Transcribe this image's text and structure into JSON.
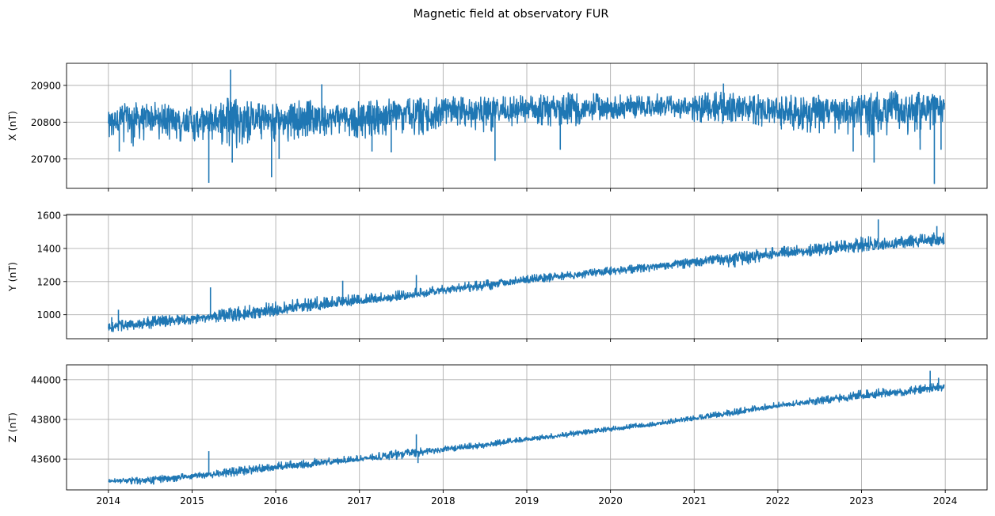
{
  "title": "Magnetic field at observatory FUR",
  "chart_data": [
    {
      "type": "line",
      "title": "",
      "xlabel": "",
      "ylabel": "X (nT)",
      "xlim": [
        2013.5,
        2024.5
      ],
      "ylim": [
        20620,
        20960
      ],
      "grid": true,
      "x_ticks": [
        "2014",
        "2015",
        "2016",
        "2017",
        "2018",
        "2019",
        "2020",
        "2021",
        "2022",
        "2023",
        "2024"
      ],
      "x_tick_labels_visible": false,
      "y_ticks": [
        20700,
        20800,
        20900
      ],
      "y_tick_labels": [
        "20700",
        "20800",
        "20900"
      ],
      "series": [
        {
          "color": "#1f77b4",
          "x": [
            2014.0,
            2014.25,
            2014.5,
            2014.75,
            2015.0,
            2015.25,
            2015.5,
            2015.75,
            2016.0,
            2016.25,
            2016.5,
            2016.75,
            2017.0,
            2017.25,
            2017.5,
            2017.75,
            2018.0,
            2018.25,
            2018.5,
            2018.75,
            2019.0,
            2019.25,
            2019.5,
            2019.75,
            2020.0,
            2020.25,
            2020.5,
            2020.75,
            2021.0,
            2021.25,
            2021.5,
            2021.75,
            2022.0,
            2022.25,
            2022.5,
            2022.75,
            2023.0,
            2023.25,
            2023.5,
            2023.75,
            2023.99
          ],
          "y": [
            20805,
            20808,
            20810,
            20806,
            20800,
            20804,
            20810,
            20808,
            20805,
            20810,
            20812,
            20814,
            20818,
            20818,
            20822,
            20822,
            20826,
            20828,
            20830,
            20830,
            20833,
            20834,
            20836,
            20838,
            20838,
            20840,
            20841,
            20842,
            20840,
            20840,
            20838,
            20834,
            20830,
            20828,
            20828,
            20826,
            20828,
            20830,
            20832,
            20834,
            20845
          ],
          "upper_envelope": [
            20840,
            20855,
            20855,
            20850,
            20845,
            20860,
            20870,
            20855,
            20850,
            20860,
            20860,
            20855,
            20860,
            20862,
            20865,
            20868,
            20870,
            20870,
            20872,
            20872,
            20875,
            20880,
            20885,
            20880,
            20875,
            20875,
            20878,
            20875,
            20875,
            20885,
            20880,
            20875,
            20875,
            20875,
            20875,
            20870,
            20875,
            20885,
            20885,
            20880,
            20870
          ],
          "lower_envelope": [
            20760,
            20725,
            20760,
            20745,
            20745,
            20745,
            20720,
            20745,
            20745,
            20745,
            20760,
            20760,
            20755,
            20760,
            20765,
            20760,
            20790,
            20790,
            20770,
            20785,
            20795,
            20790,
            20785,
            20800,
            20810,
            20810,
            20815,
            20815,
            20800,
            20795,
            20790,
            20790,
            20780,
            20775,
            20765,
            20760,
            20760,
            20760,
            20760,
            20750,
            20800
          ],
          "spikes": [
            {
              "x": 2014.13,
              "y": 20720
            },
            {
              "x": 2015.2,
              "y": 20635
            },
            {
              "x": 2015.46,
              "y": 20943
            },
            {
              "x": 2015.48,
              "y": 20690
            },
            {
              "x": 2015.95,
              "y": 20650
            },
            {
              "x": 2016.04,
              "y": 20700
            },
            {
              "x": 2016.55,
              "y": 20903
            },
            {
              "x": 2017.15,
              "y": 20720
            },
            {
              "x": 2017.38,
              "y": 20718
            },
            {
              "x": 2018.62,
              "y": 20695
            },
            {
              "x": 2019.4,
              "y": 20725
            },
            {
              "x": 2021.35,
              "y": 20905
            },
            {
              "x": 2022.9,
              "y": 20720
            },
            {
              "x": 2023.15,
              "y": 20690
            },
            {
              "x": 2023.7,
              "y": 20725
            },
            {
              "x": 2023.87,
              "y": 20632
            },
            {
              "x": 2023.95,
              "y": 20725
            }
          ]
        }
      ]
    },
    {
      "type": "line",
      "title": "",
      "xlabel": "",
      "ylabel": "Y (nT)",
      "xlim": [
        2013.5,
        2024.5
      ],
      "ylim": [
        855,
        1605
      ],
      "grid": true,
      "x_ticks": [
        "2014",
        "2015",
        "2016",
        "2017",
        "2018",
        "2019",
        "2020",
        "2021",
        "2022",
        "2023",
        "2024"
      ],
      "x_tick_labels_visible": false,
      "y_ticks": [
        1000,
        1200,
        1400,
        1600
      ],
      "y_tick_labels": [
        "1000",
        "1200",
        "1400",
        "1600"
      ],
      "series": [
        {
          "color": "#1f77b4",
          "x": [
            2014.0,
            2014.5,
            2015.0,
            2015.5,
            2016.0,
            2016.5,
            2017.0,
            2017.5,
            2018.0,
            2018.5,
            2019.0,
            2019.5,
            2020.0,
            2020.5,
            2021.0,
            2021.5,
            2022.0,
            2022.5,
            2023.0,
            2023.5,
            2023.99
          ],
          "y": [
            930,
            950,
            975,
            1000,
            1030,
            1060,
            1085,
            1110,
            1150,
            1175,
            1210,
            1235,
            1265,
            1290,
            1320,
            1340,
            1370,
            1390,
            1420,
            1435,
            1450
          ],
          "upper_envelope": [
            960,
            990,
            1010,
            1045,
            1080,
            1110,
            1125,
            1150,
            1180,
            1210,
            1240,
            1260,
            1290,
            1310,
            1345,
            1380,
            1410,
            1430,
            1470,
            1480,
            1500
          ],
          "lower_envelope": [
            895,
            915,
            945,
            960,
            995,
            1025,
            1060,
            1085,
            1125,
            1145,
            1185,
            1210,
            1240,
            1260,
            1285,
            1285,
            1345,
            1355,
            1380,
            1400,
            1420
          ],
          "spikes": [
            {
              "x": 2014.04,
              "y": 985
            },
            {
              "x": 2014.12,
              "y": 1030
            },
            {
              "x": 2015.22,
              "y": 1165
            },
            {
              "x": 2016.8,
              "y": 1205
            },
            {
              "x": 2017.68,
              "y": 1240
            },
            {
              "x": 2023.2,
              "y": 1575
            },
            {
              "x": 2023.9,
              "y": 1535
            }
          ]
        }
      ]
    },
    {
      "type": "line",
      "title": "",
      "xlabel": "",
      "ylabel": "Z (nT)",
      "xlim": [
        2013.5,
        2024.5
      ],
      "ylim": [
        43445,
        44075
      ],
      "grid": true,
      "x_ticks": [
        "2014",
        "2015",
        "2016",
        "2017",
        "2018",
        "2019",
        "2020",
        "2021",
        "2022",
        "2023",
        "2024"
      ],
      "x_tick_labels_visible": true,
      "y_ticks": [
        43600,
        43800,
        44000
      ],
      "y_tick_labels": [
        "43600",
        "43800",
        "44000"
      ],
      "series": [
        {
          "color": "#1f77b4",
          "x": [
            2014.0,
            2014.5,
            2015.0,
            2015.5,
            2016.0,
            2016.5,
            2017.0,
            2017.5,
            2018.0,
            2018.5,
            2019.0,
            2019.5,
            2020.0,
            2020.5,
            2021.0,
            2021.5,
            2022.0,
            2022.5,
            2023.0,
            2023.5,
            2023.99
          ],
          "y": [
            43490,
            43495,
            43515,
            43535,
            43560,
            43580,
            43600,
            43625,
            43650,
            43670,
            43700,
            43725,
            43750,
            43775,
            43805,
            43835,
            43870,
            43895,
            43920,
            43940,
            43965
          ],
          "upper_envelope": [
            43500,
            43515,
            43530,
            43560,
            43585,
            43605,
            43620,
            43650,
            43665,
            43690,
            43715,
            43740,
            43765,
            43790,
            43820,
            43855,
            43890,
            43915,
            43950,
            43965,
            43990
          ],
          "lower_envelope": [
            43480,
            43470,
            43500,
            43510,
            43545,
            43560,
            43590,
            43600,
            43635,
            43655,
            43690,
            43710,
            43740,
            43765,
            43795,
            43820,
            43860,
            43875,
            43900,
            43920,
            43945
          ],
          "spikes": [
            {
              "x": 2015.2,
              "y": 43640
            },
            {
              "x": 2017.68,
              "y": 43725
            },
            {
              "x": 2017.7,
              "y": 43580
            },
            {
              "x": 2023.82,
              "y": 44045
            },
            {
              "x": 2023.92,
              "y": 44010
            }
          ]
        }
      ]
    }
  ]
}
